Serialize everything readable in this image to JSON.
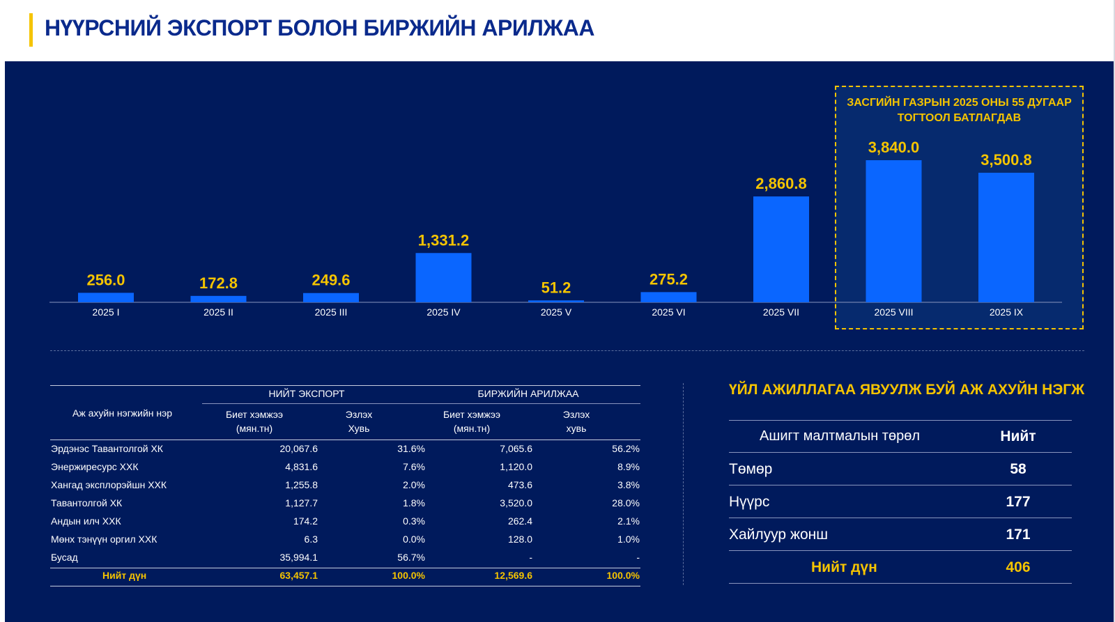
{
  "header": {
    "title": "НҮҮРСНИЙ ЭКСПОРТ БОЛОН БИРЖИЙН АРИЛЖАА"
  },
  "colors": {
    "bar": "#0a66ff",
    "accent": "#f5c400",
    "panel": "#001a5c",
    "title": "#0a2a8c"
  },
  "highlight": {
    "title_line1": "ЗАСГИЙН ГАЗРЫН 2025 ОНЫ 55 ДУГААР",
    "title_line2": "ТОГТООЛ БАТЛАГДАВ"
  },
  "chart_data": {
    "type": "bar",
    "categories": [
      "2025 I",
      "2025 II",
      "2025 III",
      "2025 IV",
      "2025 V",
      "2025 VI",
      "2025 VII",
      "2025 VIII",
      "2025 IX"
    ],
    "values": [
      256.0,
      172.8,
      249.6,
      1331.2,
      51.2,
      275.2,
      2860.8,
      3840.0,
      3500.8
    ],
    "value_labels": [
      "256.0",
      "172.8",
      "249.6",
      "1,331.2",
      "51.2",
      "275.2",
      "2,860.8",
      "3,840.0",
      "3,500.8"
    ],
    "highlighted_categories": [
      "2025 VIII",
      "2025 IX"
    ],
    "ylim": [
      0,
      3840
    ],
    "grid": false,
    "title": "",
    "xlabel": "",
    "ylabel": ""
  },
  "left_table": {
    "name_header": "Аж ахуйн нэгжийн нэр",
    "group_export": "НИЙТ ЭКСПОРТ",
    "group_exchange": "БИРЖИЙН АРИЛЖАА",
    "sub_volume_l1": "Биет хэмжээ",
    "sub_volume_l2": "(мян.тн)",
    "sub_share1_l1": "Эзлэх",
    "sub_share1_l2": "Хувь",
    "sub_share2_l1": "Эзлэх",
    "sub_share2_l2": "хувь",
    "rows": [
      [
        "Эрдэнэс Тавантолгой ХК",
        "20,067.6",
        "31.6%",
        "7,065.6",
        "56.2%"
      ],
      [
        "Энержиресурс ХХК",
        "4,831.6",
        "7.6%",
        "1,120.0",
        "8.9%"
      ],
      [
        "Хангад эксплорэйшн ХХК",
        "1,255.8",
        "2.0%",
        "473.6",
        "3.8%"
      ],
      [
        "Тавантолгой ХК",
        "1,127.7",
        "1.8%",
        "3,520.0",
        "28.0%"
      ],
      [
        "Андын илч ХХК",
        "174.2",
        "0.3%",
        "262.4",
        "2.1%"
      ],
      [
        "Мөнх тэнүүн оргил ХХК",
        "6.3",
        "0.0%",
        "128.0",
        "1.0%"
      ],
      [
        "Бусад",
        "35,994.1",
        "56.7%",
        "-",
        "-"
      ]
    ],
    "total": [
      "Нийт дүн",
      "63,457.1",
      "100.0%",
      "12,569.6",
      "100.0%"
    ]
  },
  "right_section": {
    "title": "ҮЙЛ АЖИЛЛАГАА ЯВУУЛЖ БУЙ АЖ АХУЙН НЭГЖ",
    "header_name": "Ашигт малтмалын төрөл",
    "header_value": "Нийт",
    "rows": [
      {
        "name": "Төмөр",
        "value": "58"
      },
      {
        "name": "Нүүрс",
        "value": "177"
      },
      {
        "name": "Хайлуур жонш",
        "value": "171"
      }
    ],
    "total_name": "Нийт дүн",
    "total_value": "406"
  }
}
